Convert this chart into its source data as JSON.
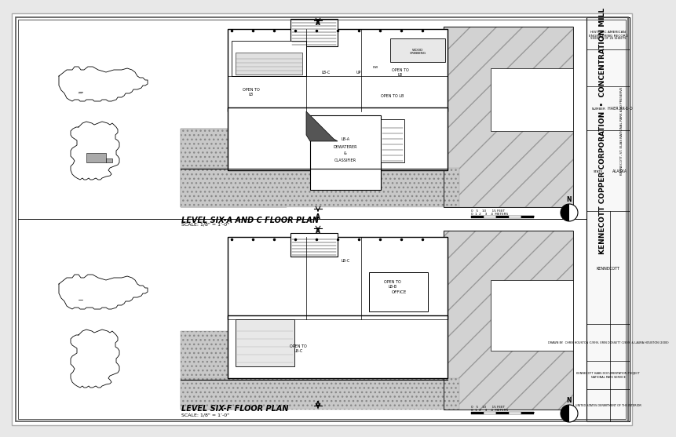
{
  "bg_color": "#e8e8e8",
  "paper_color": "#ffffff",
  "border_color": "#000000",
  "sheet_title_top": "LEVEL SIX-A AND C FLOOR PLAN",
  "sheet_scale_top": "SCALE: 1/8\" = 1’-0\"",
  "sheet_title_bot": "LEVEL SIX-F FLOOR PLAN",
  "sheet_scale_bot": "SCALE: 1/8\" = 1’-0\"",
  "right_bar_title": "KENNECOTT COPPER CORPORATION  •  CONCENTRATION MILL",
  "haer_text": "HISTORIC AMERICAN\nENGINEERING RECORD",
  "sheet_num": "SHEET 9 OF 26 SHEETS",
  "haer_num": "HAER AK-1-D",
  "state": "ALASKA",
  "drawn_by": "DRAWN BY:  CHRIS HOUSTON (1999), ERIN DOSSETT (1999) & LAURA HOUSTON (2000)",
  "project": "KENNECOTT HABS DOCUMENTATION PROJECT\nNATIONAL PARK SERVICE",
  "dept": "UNITED STATES DEPARTMENT OF THE INTERIOR",
  "kennecott_sub": "KENNECOTT, ST. ELIAS NATIONAL PARK AND PRESERVE"
}
